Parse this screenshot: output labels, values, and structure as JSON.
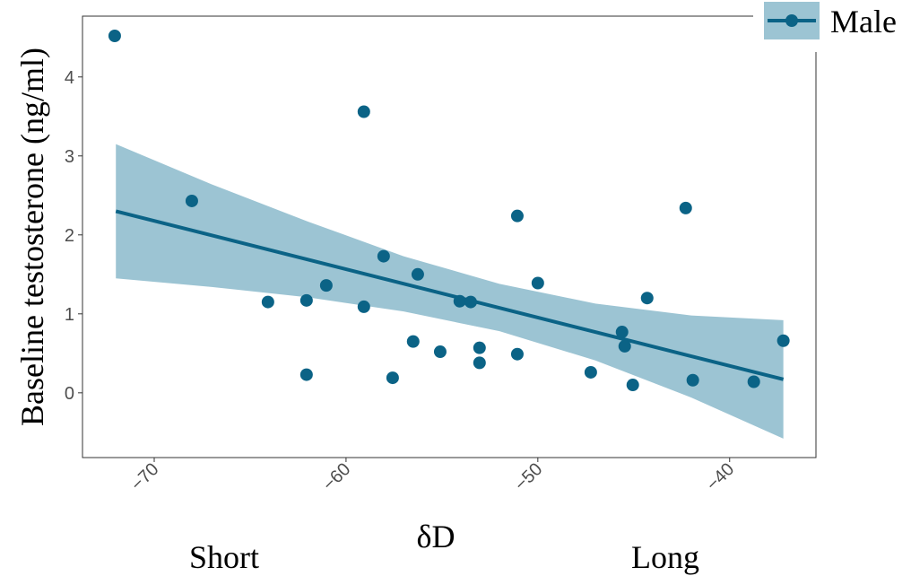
{
  "chart_data": {
    "type": "scatter",
    "y_label": "Baseline testosterone (ng/ml)",
    "x_label": "δD",
    "x_annotations": [
      "Short",
      "Long"
    ],
    "xlim": [
      -73.74,
      -35.5
    ],
    "ylim": [
      -0.82,
      4.77
    ],
    "xticks": [
      {
        "value": -70,
        "label": "−70"
      },
      {
        "value": -60,
        "label": "−60"
      },
      {
        "value": -50,
        "label": "−50"
      },
      {
        "value": -40,
        "label": "−40"
      }
    ],
    "yticks": [
      0,
      1,
      2,
      3,
      4
    ],
    "series": [
      {
        "name": "Male",
        "color": "#0b6386",
        "x": [
          -72.06,
          -68.04,
          -64.07,
          -62.06,
          -62.06,
          -61.03,
          -59.07,
          -59.07,
          -58.04,
          -57.57,
          -56.5,
          -56.26,
          -55.09,
          -54.07,
          -53.5,
          -53.04,
          -53.04,
          -51.07,
          -51.07,
          -50,
          -47.24,
          -45.61,
          -45.47,
          -45.05,
          -44.3,
          -42.29,
          -41.92,
          -38.74,
          -37.2
        ],
        "values": [
          4.52,
          2.43,
          1.15,
          1.17,
          0.23,
          1.36,
          3.56,
          1.09,
          1.73,
          0.19,
          0.65,
          1.5,
          0.52,
          1.16,
          1.15,
          0.57,
          0.38,
          2.24,
          0.49,
          1.39,
          0.26,
          0.77,
          0.59,
          0.1,
          1.2,
          2.34,
          0.16,
          0.14,
          0.66
        ]
      }
    ],
    "fit": {
      "color": "#0b6386",
      "x": [
        -72,
        -37.2
      ],
      "values": [
        2.3,
        0.17
      ]
    },
    "band": {
      "color": "#9cc4d3",
      "x": [
        -72,
        -67,
        -62,
        -57,
        -52,
        -47,
        -42,
        -37.2
      ],
      "upper": [
        3.15,
        2.64,
        2.17,
        1.73,
        1.38,
        1.13,
        0.98,
        0.92
      ],
      "lower": [
        1.45,
        1.34,
        1.21,
        1.03,
        0.78,
        0.41,
        -0.06,
        -0.58
      ]
    }
  }
}
